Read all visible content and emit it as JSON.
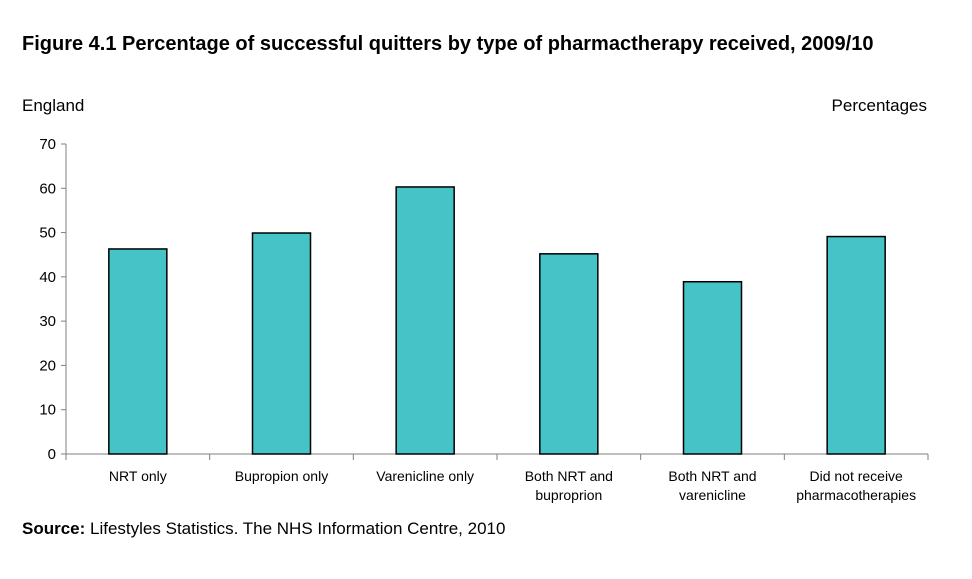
{
  "header": {
    "title": "Figure 4.1 Percentage of successful quitters by type of pharmactherapy received, 2009/10",
    "region": "England",
    "units": "Percentages"
  },
  "footer": {
    "source_label": "Source:",
    "source_text": " Lifestyles Statistics. The NHS Information Centre, 2010"
  },
  "colors": {
    "bar_fill": "#45C3C6",
    "bar_stroke": "#000000",
    "axis": "#7f7f7f"
  },
  "chart_data": {
    "type": "bar",
    "categories": [
      [
        "NRT only"
      ],
      [
        "Bupropion only"
      ],
      [
        "Varenicline only"
      ],
      [
        "Both NRT and",
        "buproprion"
      ],
      [
        "Both NRT and",
        "varenicline"
      ],
      [
        "Did not receive",
        "pharmacotherapies"
      ]
    ],
    "values": [
      46.3,
      49.9,
      60.3,
      45.2,
      38.9,
      49.1
    ],
    "ylim": [
      0,
      70
    ],
    "yticks": [
      "0",
      "10",
      "20",
      "30",
      "40",
      "50",
      "60",
      "70"
    ],
    "grid": false,
    "legend": "none"
  }
}
